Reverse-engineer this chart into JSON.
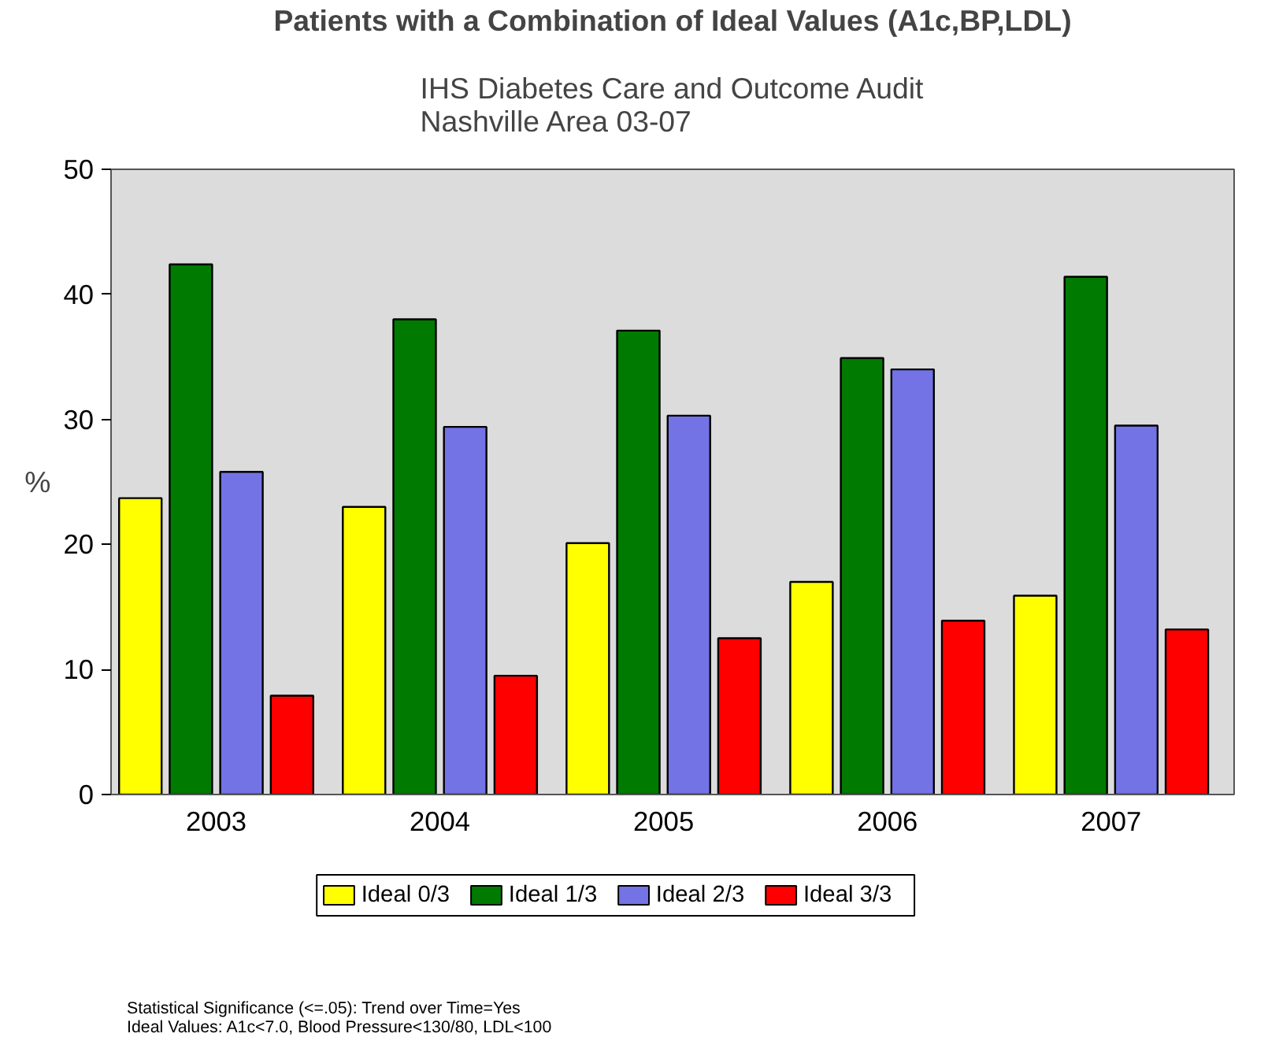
{
  "chart_data": {
    "type": "bar",
    "title": "Patients with a Combination of Ideal Values (A1c,BP,LDL)",
    "subtitle": "IHS Diabetes Care and Outcome Audit\nNashville Area 03-07",
    "ylabel": "%",
    "categories": [
      "2003",
      "2004",
      "2005",
      "2006",
      "2007"
    ],
    "series": [
      {
        "name": "Ideal 0/3",
        "color": "#ffff00",
        "values": [
          23.7,
          23.0,
          20.1,
          17.0,
          15.9
        ]
      },
      {
        "name": "Ideal 1/3",
        "color": "#007a00",
        "values": [
          42.4,
          38.0,
          37.1,
          34.9,
          41.4
        ]
      },
      {
        "name": "Ideal 2/3",
        "color": "#7373e6",
        "values": [
          25.8,
          29.4,
          30.3,
          34.0,
          29.5
        ]
      },
      {
        "name": "Ideal 3/3",
        "color": "#ff0000",
        "values": [
          7.9,
          9.5,
          12.5,
          13.9,
          13.2
        ]
      }
    ],
    "ylim": [
      0,
      50
    ],
    "yticks": [
      0,
      10,
      20,
      30,
      40,
      50
    ],
    "grid": false,
    "legend": "bottom",
    "annotations": [
      "Statistical Significance (<=.05): Trend over Time=Yes",
      "Ideal Values: A1c<7.0, Blood Pressure<130/80, LDL<100"
    ]
  }
}
